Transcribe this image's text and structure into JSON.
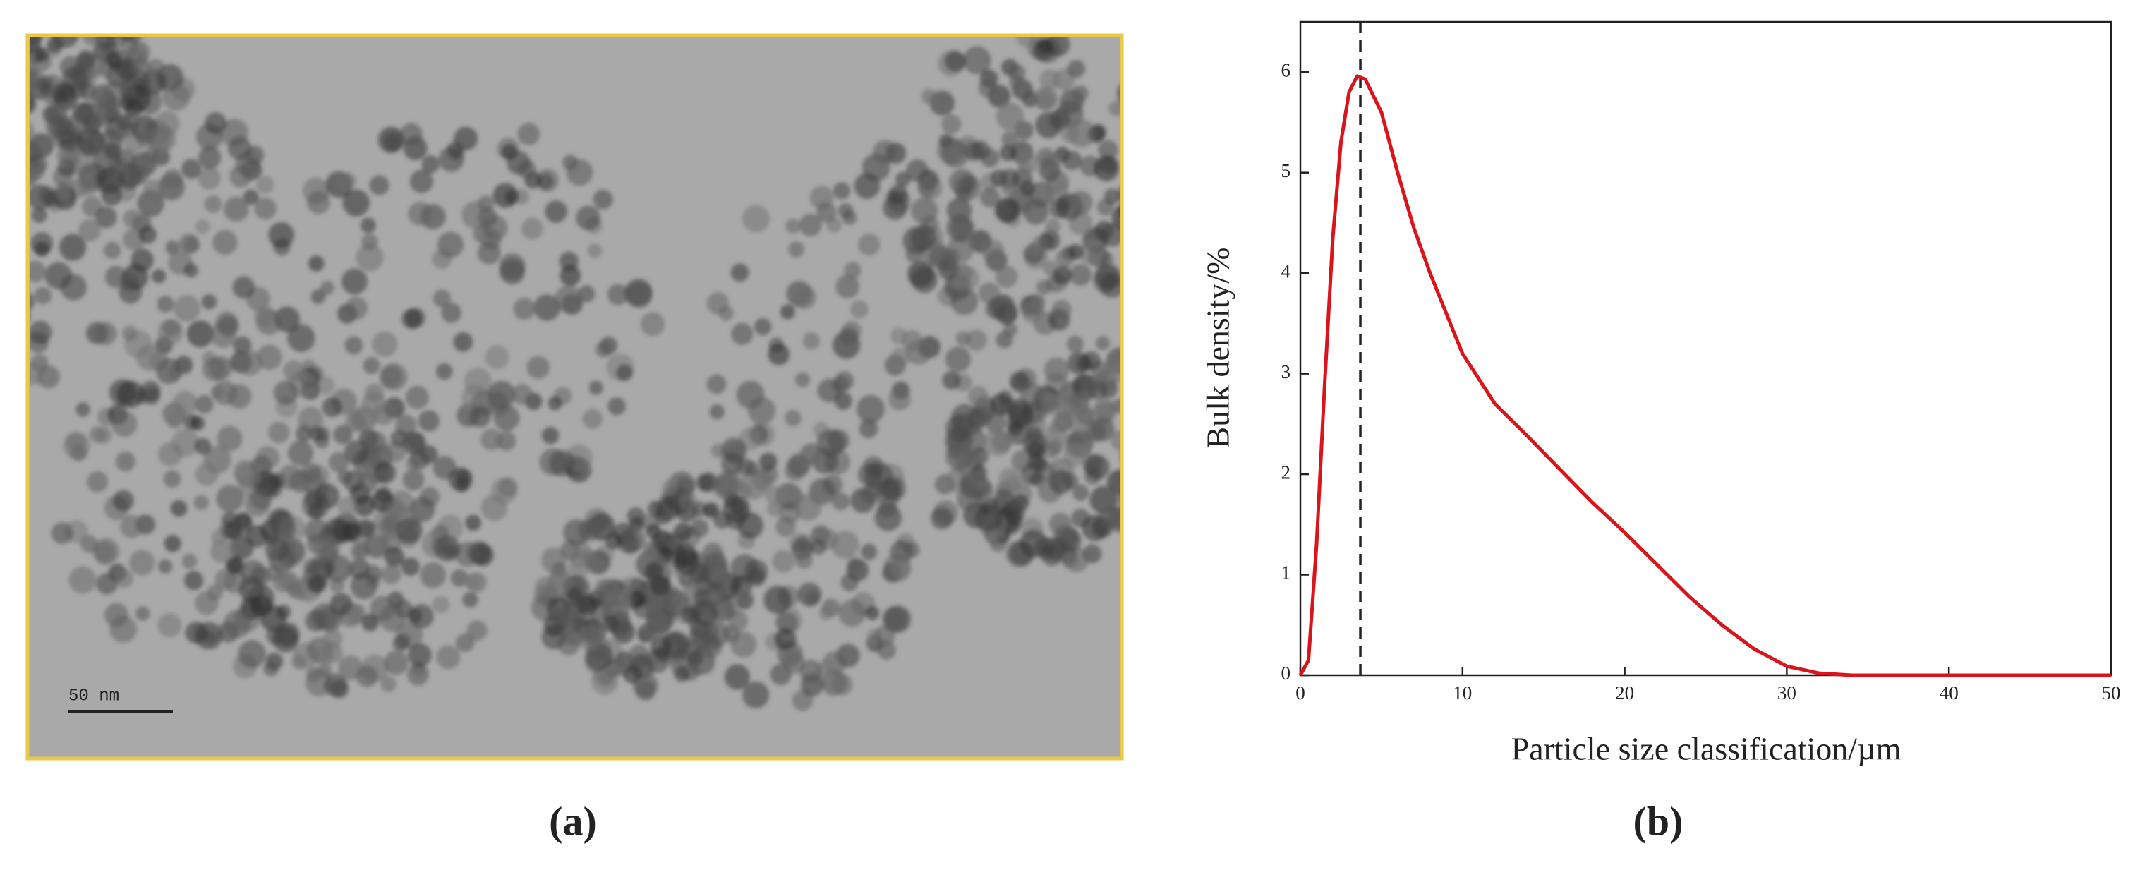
{
  "figure": {
    "panel_a": {
      "scale_bar": "50 nm",
      "label": "(a)"
    },
    "panel_b": {
      "label": "(b)"
    }
  },
  "chart_data": {
    "type": "line",
    "x_label": "Particle size classification/µm",
    "y_label": "Bulk density/%",
    "x": [
      0,
      0.5,
      1,
      1.5,
      2,
      2.5,
      3,
      3.5,
      4,
      5,
      6,
      7,
      8,
      9,
      10,
      12,
      14,
      16,
      18,
      20,
      22,
      24,
      26,
      28,
      30,
      32,
      34,
      40,
      50
    ],
    "series": [
      {
        "color": "#d9141b",
        "values": [
          0,
          0.15,
          1.3,
          2.9,
          4.35,
          5.3,
          5.8,
          5.96,
          5.93,
          5.6,
          5.0,
          4.45,
          4.0,
          3.6,
          3.2,
          2.7,
          2.38,
          2.05,
          1.72,
          1.42,
          1.1,
          0.78,
          0.5,
          0.26,
          0.09,
          0.02,
          0,
          0,
          0
        ]
      }
    ],
    "peak_line": {
      "x": 3.7,
      "color": "#222222"
    },
    "xlim": [
      0,
      50
    ],
    "xticks": [
      0,
      10,
      20,
      30,
      40,
      50
    ],
    "ylim": [
      0,
      6.5
    ],
    "yticks": [
      0,
      1,
      2,
      3,
      4,
      5,
      6
    ]
  }
}
